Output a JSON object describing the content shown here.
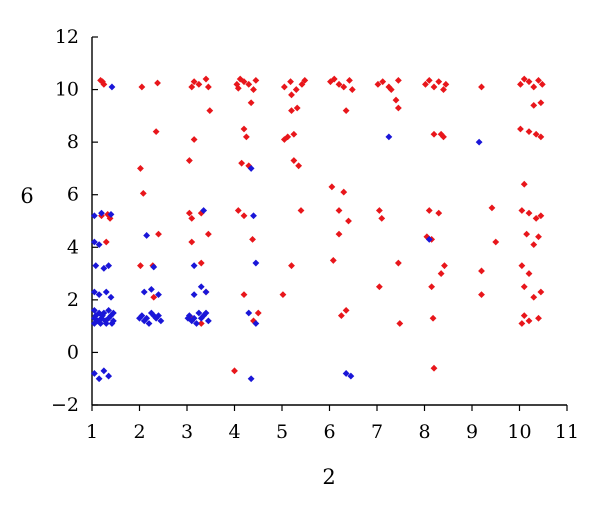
{
  "chart_data": {
    "type": "scatter",
    "title": "",
    "xlabel": "2",
    "ylabel": "6",
    "xlim": [
      1,
      11
    ],
    "ylim": [
      -2,
      12
    ],
    "xticks": [
      1,
      2,
      3,
      4,
      5,
      6,
      7,
      8,
      9,
      10,
      11
    ],
    "yticks": [
      -2,
      0,
      2,
      4,
      6,
      8,
      10,
      12
    ],
    "grid": false,
    "legend": "none",
    "series": [
      {
        "color": "#e8161b",
        "marker": "diamond",
        "points": [
          [
            1.18,
            10.35
          ],
          [
            1.22,
            10.3
          ],
          [
            1.25,
            10.2
          ],
          [
            1.2,
            5.2
          ],
          [
            1.33,
            5.25
          ],
          [
            1.3,
            4.2
          ],
          [
            1.38,
            5.1
          ],
          [
            2.05,
            10.1
          ],
          [
            2.38,
            10.25
          ],
          [
            2.02,
            7.0
          ],
          [
            2.08,
            6.05
          ],
          [
            2.35,
            8.4
          ],
          [
            2.28,
            3.3
          ],
          [
            2.02,
            3.3
          ],
          [
            2.4,
            4.5
          ],
          [
            2.3,
            2.1
          ],
          [
            3.1,
            10.1
          ],
          [
            3.25,
            10.2
          ],
          [
            3.4,
            10.4
          ],
          [
            3.45,
            10.1
          ],
          [
            3.15,
            10.3
          ],
          [
            3.48,
            9.2
          ],
          [
            3.15,
            8.1
          ],
          [
            3.05,
            7.3
          ],
          [
            3.05,
            5.3
          ],
          [
            3.1,
            5.1
          ],
          [
            3.1,
            4.2
          ],
          [
            3.3,
            5.3
          ],
          [
            3.45,
            4.5
          ],
          [
            3.3,
            3.4
          ],
          [
            3.4,
            2.3
          ],
          [
            3.1,
            1.3
          ],
          [
            3.3,
            1.1
          ],
          [
            4.05,
            10.2
          ],
          [
            4.12,
            10.4
          ],
          [
            4.2,
            10.3
          ],
          [
            4.3,
            10.2
          ],
          [
            4.45,
            10.35
          ],
          [
            4.08,
            10.05
          ],
          [
            4.4,
            10.0
          ],
          [
            4.35,
            9.5
          ],
          [
            4.2,
            8.5
          ],
          [
            4.25,
            8.2
          ],
          [
            4.15,
            7.2
          ],
          [
            4.3,
            7.1
          ],
          [
            4.08,
            5.4
          ],
          [
            4.2,
            5.2
          ],
          [
            4.38,
            4.3
          ],
          [
            4.2,
            2.2
          ],
          [
            4.5,
            1.5
          ],
          [
            4.4,
            1.2
          ],
          [
            4.0,
            -0.7
          ],
          [
            5.05,
            10.1
          ],
          [
            5.18,
            10.3
          ],
          [
            5.3,
            10.0
          ],
          [
            5.42,
            10.2
          ],
          [
            5.48,
            10.35
          ],
          [
            5.2,
            9.8
          ],
          [
            5.32,
            9.3
          ],
          [
            5.2,
            9.2
          ],
          [
            5.05,
            8.1
          ],
          [
            5.12,
            8.2
          ],
          [
            5.25,
            8.3
          ],
          [
            5.35,
            7.1
          ],
          [
            5.25,
            7.3
          ],
          [
            5.4,
            5.4
          ],
          [
            5.2,
            3.3
          ],
          [
            5.02,
            2.2
          ],
          [
            6.02,
            10.3
          ],
          [
            6.1,
            10.4
          ],
          [
            6.2,
            10.2
          ],
          [
            6.3,
            10.1
          ],
          [
            6.42,
            10.35
          ],
          [
            6.48,
            10.0
          ],
          [
            6.35,
            9.2
          ],
          [
            6.05,
            6.3
          ],
          [
            6.3,
            6.1
          ],
          [
            6.2,
            5.4
          ],
          [
            6.4,
            5.0
          ],
          [
            6.2,
            4.5
          ],
          [
            6.08,
            3.5
          ],
          [
            6.25,
            1.4
          ],
          [
            6.35,
            1.6
          ],
          [
            7.02,
            10.2
          ],
          [
            7.12,
            10.3
          ],
          [
            7.25,
            10.1
          ],
          [
            7.45,
            10.35
          ],
          [
            7.3,
            10.0
          ],
          [
            7.4,
            9.6
          ],
          [
            7.45,
            9.3
          ],
          [
            7.05,
            5.4
          ],
          [
            7.1,
            5.1
          ],
          [
            7.45,
            3.4
          ],
          [
            7.05,
            2.5
          ],
          [
            7.48,
            1.1
          ],
          [
            8.02,
            10.2
          ],
          [
            8.1,
            10.35
          ],
          [
            8.2,
            10.1
          ],
          [
            8.3,
            10.3
          ],
          [
            8.4,
            10.0
          ],
          [
            8.45,
            10.2
          ],
          [
            8.2,
            8.3
          ],
          [
            8.35,
            8.3
          ],
          [
            8.4,
            8.2
          ],
          [
            8.1,
            5.4
          ],
          [
            8.3,
            5.3
          ],
          [
            8.05,
            4.4
          ],
          [
            8.15,
            4.3
          ],
          [
            8.42,
            3.3
          ],
          [
            8.35,
            3.0
          ],
          [
            8.15,
            2.5
          ],
          [
            8.18,
            1.3
          ],
          [
            8.2,
            -0.6
          ],
          [
            9.2,
            10.1
          ],
          [
            9.42,
            5.5
          ],
          [
            9.2,
            3.1
          ],
          [
            9.2,
            2.2
          ],
          [
            9.5,
            4.2
          ],
          [
            10.02,
            10.2
          ],
          [
            10.1,
            10.4
          ],
          [
            10.2,
            10.3
          ],
          [
            10.3,
            10.1
          ],
          [
            10.4,
            10.35
          ],
          [
            10.48,
            10.2
          ],
          [
            10.45,
            9.5
          ],
          [
            10.3,
            9.4
          ],
          [
            10.02,
            8.5
          ],
          [
            10.2,
            8.4
          ],
          [
            10.35,
            8.3
          ],
          [
            10.45,
            8.2
          ],
          [
            10.1,
            6.4
          ],
          [
            10.05,
            5.4
          ],
          [
            10.2,
            5.3
          ],
          [
            10.35,
            5.1
          ],
          [
            10.45,
            5.2
          ],
          [
            10.15,
            4.5
          ],
          [
            10.4,
            4.4
          ],
          [
            10.3,
            4.1
          ],
          [
            10.05,
            3.3
          ],
          [
            10.2,
            3.0
          ],
          [
            10.1,
            2.5
          ],
          [
            10.45,
            2.3
          ],
          [
            10.3,
            2.1
          ],
          [
            10.1,
            1.4
          ],
          [
            10.2,
            1.2
          ],
          [
            10.4,
            1.3
          ],
          [
            10.05,
            1.1
          ]
        ]
      },
      {
        "color": "#1a16d8",
        "marker": "diamond",
        "points": [
          [
            1.05,
            5.2
          ],
          [
            1.2,
            5.3
          ],
          [
            1.4,
            5.25
          ],
          [
            1.05,
            4.2
          ],
          [
            1.15,
            4.1
          ],
          [
            1.08,
            3.3
          ],
          [
            1.25,
            3.2
          ],
          [
            1.35,
            3.3
          ],
          [
            1.05,
            2.3
          ],
          [
            1.15,
            2.2
          ],
          [
            1.3,
            2.3
          ],
          [
            1.4,
            2.1
          ],
          [
            1.05,
            1.6
          ],
          [
            1.15,
            1.5
          ],
          [
            1.25,
            1.5
          ],
          [
            1.35,
            1.6
          ],
          [
            1.45,
            1.5
          ],
          [
            1.05,
            1.3
          ],
          [
            1.12,
            1.2
          ],
          [
            1.2,
            1.3
          ],
          [
            1.28,
            1.2
          ],
          [
            1.35,
            1.3
          ],
          [
            1.45,
            1.2
          ],
          [
            1.08,
            1.4
          ],
          [
            1.22,
            1.4
          ],
          [
            1.4,
            1.4
          ],
          [
            1.05,
            1.1
          ],
          [
            1.18,
            1.1
          ],
          [
            1.3,
            1.1
          ],
          [
            1.42,
            1.1
          ],
          [
            1.05,
            -0.8
          ],
          [
            1.15,
            -1.0
          ],
          [
            1.25,
            -0.7
          ],
          [
            1.35,
            -0.9
          ],
          [
            1.42,
            10.1
          ],
          [
            2.15,
            4.45
          ],
          [
            2.3,
            3.25
          ],
          [
            2.1,
            2.3
          ],
          [
            2.25,
            2.4
          ],
          [
            2.4,
            2.2
          ],
          [
            2.05,
            1.4
          ],
          [
            2.15,
            1.3
          ],
          [
            2.25,
            1.5
          ],
          [
            2.35,
            1.3
          ],
          [
            2.45,
            1.2
          ],
          [
            2.1,
            1.2
          ],
          [
            2.2,
            1.1
          ],
          [
            2.3,
            1.4
          ],
          [
            2.4,
            1.4
          ],
          [
            2.0,
            1.3
          ],
          [
            3.35,
            5.4
          ],
          [
            3.15,
            3.3
          ],
          [
            3.3,
            2.5
          ],
          [
            3.15,
            2.2
          ],
          [
            3.4,
            2.3
          ],
          [
            3.05,
            1.4
          ],
          [
            3.15,
            1.3
          ],
          [
            3.25,
            1.5
          ],
          [
            3.35,
            1.4
          ],
          [
            3.45,
            1.2
          ],
          [
            3.1,
            1.2
          ],
          [
            3.2,
            1.1
          ],
          [
            3.3,
            1.3
          ],
          [
            3.4,
            1.5
          ],
          [
            3.02,
            1.3
          ],
          [
            4.35,
            7.0
          ],
          [
            4.4,
            5.2
          ],
          [
            4.45,
            3.4
          ],
          [
            4.3,
            1.5
          ],
          [
            4.45,
            1.1
          ],
          [
            4.35,
            -1.0
          ],
          [
            6.35,
            -0.8
          ],
          [
            6.45,
            -0.9
          ],
          [
            7.25,
            8.2
          ],
          [
            8.1,
            4.3
          ],
          [
            9.15,
            8.0
          ]
        ]
      }
    ]
  }
}
